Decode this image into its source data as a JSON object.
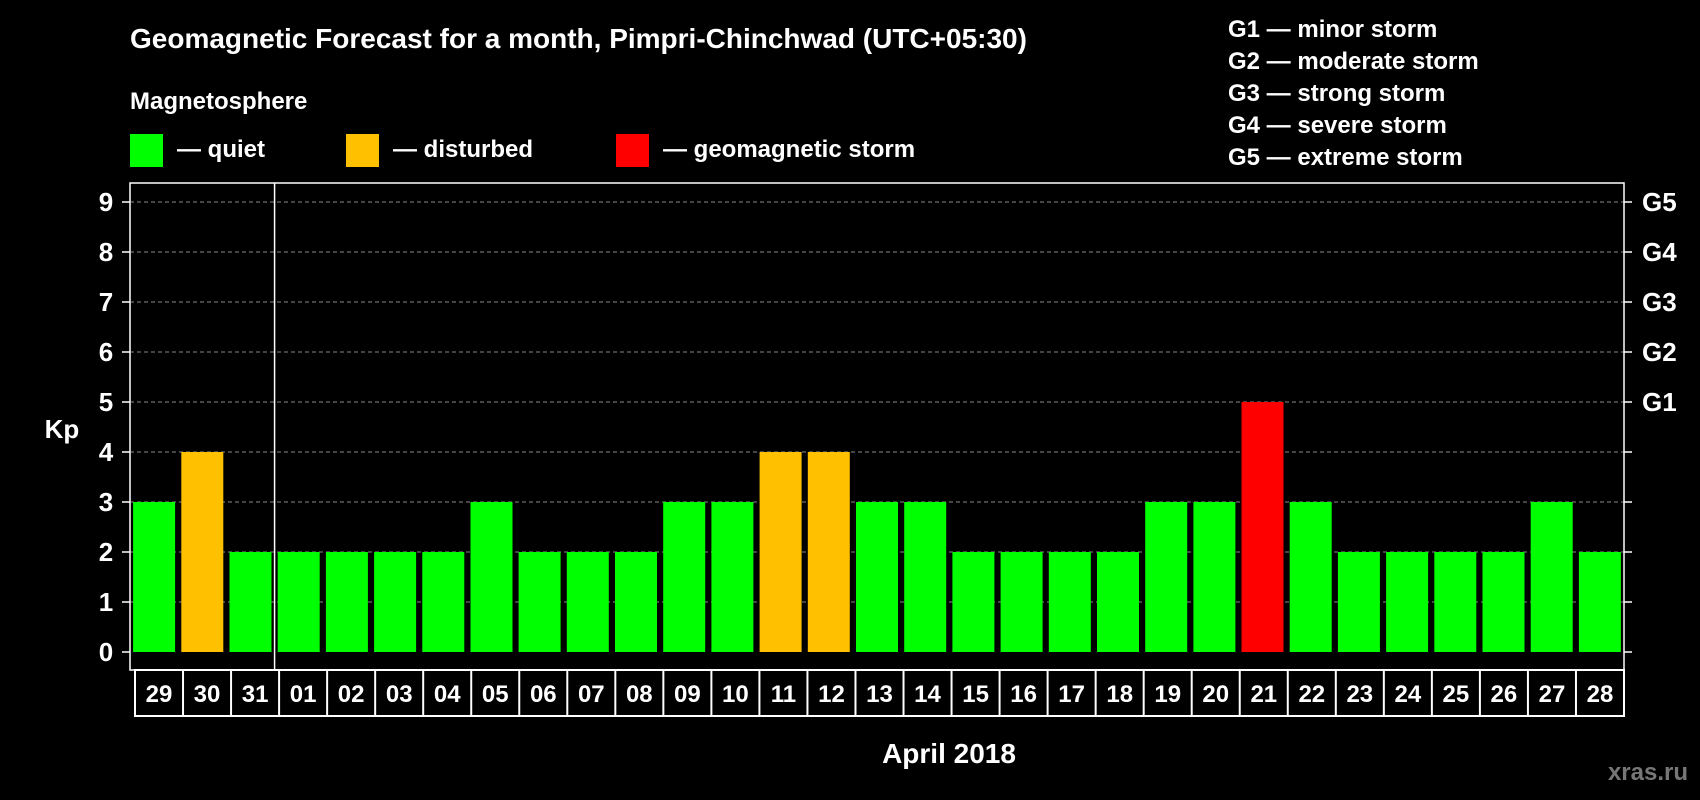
{
  "chart_data": {
    "type": "bar",
    "title": "Geomagnetic Forecast for a month, Pimpri-Chinchwad (UTC+05:30)",
    "xlabel": "April 2018",
    "ylabel": "Kp",
    "ylim": [
      0,
      9
    ],
    "yticks": [
      0,
      1,
      2,
      3,
      4,
      5,
      6,
      7,
      8,
      9
    ],
    "right_axis": [
      {
        "kp": 5,
        "label": "G1"
      },
      {
        "kp": 6,
        "label": "G2"
      },
      {
        "kp": 7,
        "label": "G3"
      },
      {
        "kp": 8,
        "label": "G4"
      },
      {
        "kp": 9,
        "label": "G5"
      }
    ],
    "categories": [
      "29",
      "30",
      "31",
      "01",
      "02",
      "03",
      "04",
      "05",
      "06",
      "07",
      "08",
      "09",
      "10",
      "11",
      "12",
      "13",
      "14",
      "15",
      "16",
      "17",
      "18",
      "19",
      "20",
      "21",
      "22",
      "23",
      "24",
      "25",
      "26",
      "27",
      "28"
    ],
    "values": [
      3,
      4,
      2,
      2,
      2,
      2,
      2,
      3,
      2,
      2,
      2,
      3,
      3,
      4,
      4,
      3,
      3,
      2,
      2,
      2,
      2,
      3,
      3,
      5,
      3,
      2,
      2,
      2,
      2,
      3,
      2
    ],
    "levels": [
      "quiet",
      "disturbed",
      "quiet",
      "quiet",
      "quiet",
      "quiet",
      "quiet",
      "quiet",
      "quiet",
      "quiet",
      "quiet",
      "quiet",
      "quiet",
      "disturbed",
      "disturbed",
      "quiet",
      "quiet",
      "quiet",
      "quiet",
      "quiet",
      "quiet",
      "quiet",
      "quiet",
      "storm",
      "quiet",
      "quiet",
      "quiet",
      "quiet",
      "quiet",
      "quiet",
      "quiet"
    ],
    "month_boundary_after": "31",
    "magnetosphere_heading": "Magnetosphere",
    "legend": [
      {
        "key": "quiet",
        "label": "— quiet",
        "color": "#00ff00"
      },
      {
        "key": "disturbed",
        "label": "— disturbed",
        "color": "#ffc000"
      },
      {
        "key": "storm",
        "label": "— geomagnetic storm",
        "color": "#ff0000"
      }
    ],
    "storm_scale": [
      "G1 — minor storm",
      "G2 — moderate storm",
      "G3 — strong storm",
      "G4 — severe storm",
      "G5 — extreme storm"
    ],
    "watermark": "xras.ru",
    "grid": true
  }
}
